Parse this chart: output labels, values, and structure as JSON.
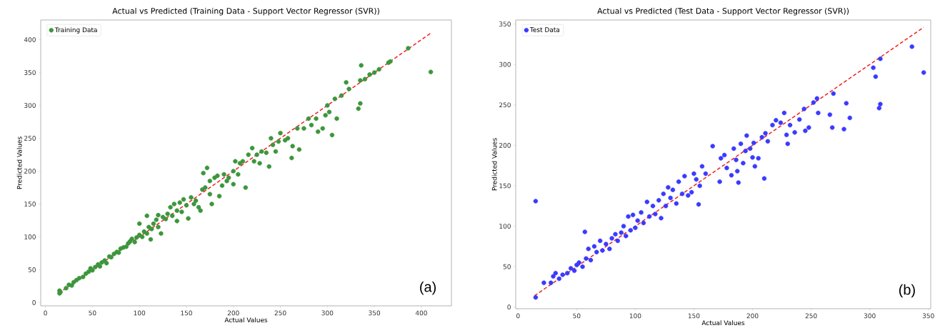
{
  "chart_data": [
    {
      "type": "scatter",
      "title": "Actual vs Predicted (Training Data - Support Vector Regressor (SVR))",
      "xlabel": "Actual Values",
      "ylabel": "Predicted Values",
      "xlim": [
        -5,
        432
      ],
      "ylim": [
        -5,
        430
      ],
      "xticks": [
        0,
        50,
        100,
        150,
        200,
        250,
        300,
        350,
        400
      ],
      "yticks": [
        0,
        50,
        100,
        150,
        200,
        250,
        300,
        350,
        400
      ],
      "legend": "top left",
      "grid": false,
      "annotations": [
        "(a)"
      ],
      "series": [
        {
          "name": "Training Data",
          "marker": "circle",
          "color": "#3c963c",
          "x": [
            15,
            15,
            16,
            22,
            25,
            28,
            30,
            33,
            36,
            40,
            43,
            46,
            48,
            50,
            53,
            56,
            58,
            60,
            63,
            65,
            68,
            70,
            73,
            76,
            78,
            80,
            83,
            86,
            88,
            90,
            92,
            95,
            97,
            100,
            100,
            103,
            105,
            108,
            108,
            110,
            112,
            113,
            115,
            118,
            120,
            120,
            123,
            125,
            128,
            130,
            133,
            135,
            137,
            140,
            140,
            143,
            145,
            147,
            150,
            152,
            155,
            158,
            160,
            163,
            165,
            167,
            168,
            170,
            172,
            175,
            175,
            177,
            180,
            183,
            185,
            188,
            190,
            193,
            195,
            200,
            200,
            202,
            205,
            207,
            210,
            213,
            216,
            220,
            222,
            225,
            228,
            230,
            235,
            238,
            240,
            242,
            245,
            248,
            250,
            255,
            258,
            262,
            263,
            268,
            270,
            275,
            280,
            283,
            288,
            290,
            295,
            298,
            300,
            302,
            305,
            308,
            310,
            315,
            320,
            323,
            333,
            335,
            335,
            336,
            340,
            345,
            350,
            355,
            365,
            367,
            386,
            410
          ],
          "values": [
            14,
            18,
            16,
            22,
            27,
            26,
            31,
            34,
            37,
            39,
            44,
            47,
            52,
            49,
            54,
            58,
            55,
            61,
            64,
            60,
            70,
            69,
            74,
            77,
            76,
            82,
            84,
            85,
            90,
            93,
            97,
            92,
            99,
            120,
            103,
            100,
            108,
            105,
            132,
            115,
            96,
            112,
            120,
            126,
            115,
            133,
            105,
            130,
            127,
            135,
            145,
            132,
            150,
            140,
            124,
            152,
            138,
            157,
            148,
            128,
            160,
            150,
            155,
            145,
            140,
            172,
            197,
            175,
            205,
            165,
            185,
            150,
            190,
            193,
            162,
            178,
            195,
            185,
            190,
            200,
            180,
            215,
            195,
            212,
            215,
            175,
            225,
            235,
            215,
            225,
            212,
            230,
            228,
            207,
            250,
            240,
            230,
            245,
            258,
            247,
            250,
            220,
            238,
            265,
            233,
            265,
            280,
            270,
            280,
            260,
            265,
            285,
            300,
            290,
            255,
            310,
            280,
            315,
            335,
            325,
            295,
            303,
            338,
            361,
            340,
            347,
            350,
            355,
            365,
            367,
            387,
            351
          ]
        },
        {
          "type": "line",
          "line_style": "dashed",
          "marker": "none",
          "color": "#ee2222",
          "x": [
            14,
            410
          ],
          "values": [
            14,
            410
          ]
        }
      ]
    },
    {
      "type": "scatter",
      "title": "Actual vs Predicted (Test Data - Support Vector Regressor (SVR))",
      "xlabel": "Actual Values",
      "ylabel": "Predicted Values",
      "xlim": [
        -2,
        352
      ],
      "ylim": [
        -2,
        355
      ],
      "xticks": [
        0,
        50,
        100,
        150,
        200,
        250,
        300,
        350
      ],
      "yticks": [
        0,
        50,
        100,
        150,
        200,
        250,
        300,
        350
      ],
      "legend": "top left",
      "grid": false,
      "annotations": [
        "(b)"
      ],
      "series": [
        {
          "name": "Test Data",
          "marker": "circle",
          "color": "#3a3aff",
          "x": [
            15,
            15,
            22,
            28,
            30,
            32,
            35,
            38,
            42,
            45,
            48,
            50,
            52,
            55,
            57,
            58,
            60,
            62,
            65,
            67,
            70,
            72,
            75,
            78,
            80,
            83,
            85,
            88,
            90,
            92,
            94,
            96,
            98,
            100,
            102,
            105,
            107,
            110,
            112,
            115,
            117,
            120,
            122,
            124,
            126,
            128,
            130,
            132,
            135,
            137,
            140,
            142,
            145,
            148,
            150,
            152,
            154,
            155,
            157,
            160,
            166,
            172,
            173,
            176,
            178,
            182,
            184,
            186,
            187,
            188,
            190,
            192,
            194,
            195,
            198,
            200,
            201,
            202,
            205,
            208,
            210,
            211,
            213,
            217,
            220,
            224,
            227,
            229,
            230,
            232,
            236,
            240,
            244,
            245,
            248,
            252,
            255,
            256,
            266,
            268,
            269,
            278,
            280,
            283,
            303,
            305,
            308,
            309,
            309,
            336,
            346
          ],
          "values": [
            12,
            131,
            30,
            30,
            38,
            42,
            35,
            40,
            42,
            48,
            45,
            52,
            55,
            50,
            93,
            60,
            72,
            58,
            75,
            68,
            82,
            70,
            78,
            72,
            85,
            90,
            82,
            92,
            100,
            88,
            112,
            95,
            114,
            98,
            107,
            117,
            104,
            130,
            112,
            125,
            115,
            132,
            110,
            140,
            125,
            148,
            135,
            145,
            128,
            155,
            140,
            162,
            138,
            142,
            165,
            158,
            127,
            150,
            174,
            165,
            199,
            155,
            184,
            188,
            172,
            163,
            196,
            182,
            168,
            154,
            202,
            178,
            193,
            212,
            196,
            185,
            203,
            174,
            184,
            210,
            159,
            215,
            205,
            225,
            231,
            228,
            240,
            213,
            202,
            225,
            216,
            232,
            245,
            218,
            222,
            253,
            258,
            240,
            238,
            222,
            264,
            220,
            252,
            234,
            296,
            285,
            246,
            251,
            307,
            322,
            290
          ]
        },
        {
          "type": "line",
          "line_style": "dashed",
          "marker": "none",
          "color": "#ee2222",
          "x": [
            14,
            346
          ],
          "values": [
            14,
            346
          ]
        }
      ]
    }
  ]
}
